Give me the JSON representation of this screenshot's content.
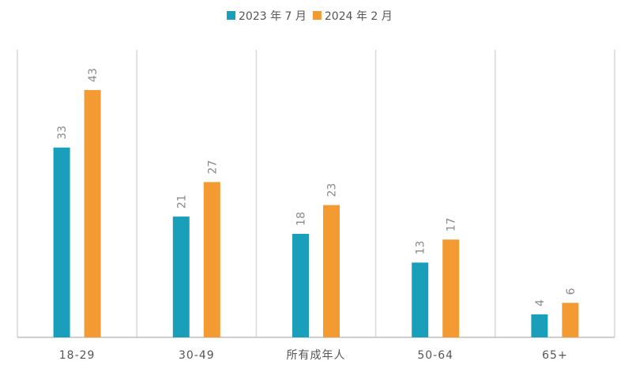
{
  "chart_data": {
    "type": "bar",
    "categories": [
      "18-29",
      "30-49",
      "所有成年人",
      "50-64",
      "65+"
    ],
    "series": [
      {
        "name": "2023 年 7 月",
        "color": "#1a9fba",
        "values": [
          33,
          21,
          18,
          13,
          4
        ]
      },
      {
        "name": "2024 年 2 月",
        "color": "#f39a33",
        "values": [
          43,
          27,
          23,
          17,
          6
        ]
      }
    ],
    "ylim": [
      0,
      50
    ],
    "legend": "top"
  }
}
